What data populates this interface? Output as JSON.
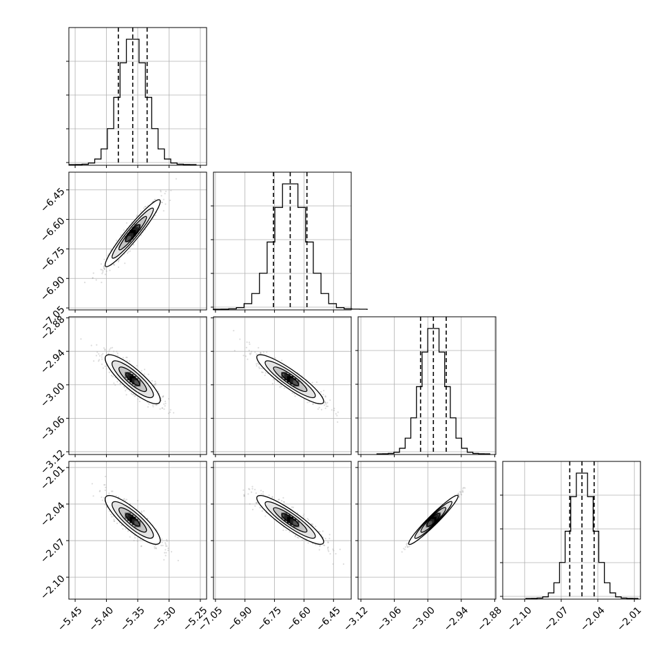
{
  "chart_data": {
    "type": "corner",
    "grid": true,
    "parameters": [
      {
        "range": [
          -5.46,
          -5.24
        ],
        "ticks": [
          -5.45,
          -5.4,
          -5.35,
          -5.3,
          -5.25
        ],
        "tick_labels": [
          "−5.45",
          "−5.40",
          "−5.35",
          "−5.30",
          "−5.25"
        ],
        "center": -5.358,
        "sd": 0.022,
        "quantiles": [
          -5.381,
          -5.358,
          -5.335
        ]
      },
      {
        "range": [
          -7.06,
          -6.36
        ],
        "ticks": [
          -7.05,
          -6.9,
          -6.75,
          -6.6,
          -6.45
        ],
        "tick_labels": [
          "−7.05",
          "−6.90",
          "−6.75",
          "−6.60",
          "−6.45"
        ],
        "center": -6.67,
        "sd": 0.085,
        "quantiles": [
          -6.755,
          -6.67,
          -6.585
        ]
      },
      {
        "range": [
          -3.125,
          -2.878
        ],
        "ticks": [
          -3.12,
          -3.06,
          -3.0,
          -2.94,
          -2.88
        ],
        "tick_labels": [
          "−3.12",
          "−3.06",
          "−3.00",
          "−2.94",
          "−2.88"
        ],
        "center": -2.99,
        "sd": 0.022,
        "quantiles": [
          -3.013,
          -2.99,
          -2.967
        ]
      },
      {
        "range": [
          -2.118,
          -2.005
        ],
        "ticks": [
          -2.1,
          -2.07,
          -2.04,
          -2.01
        ],
        "tick_labels": [
          "−2.10",
          "−2.07",
          "−2.04",
          "−2.01"
        ],
        "center": -2.053,
        "sd": 0.01,
        "quantiles": [
          -2.063,
          -2.053,
          -2.043
        ]
      }
    ],
    "correlations": [
      {
        "i": 1,
        "j": 0,
        "rho": 0.95
      },
      {
        "i": 2,
        "j": 0,
        "rho": -0.85
      },
      {
        "i": 2,
        "j": 1,
        "rho": -0.9
      },
      {
        "i": 3,
        "j": 0,
        "rho": -0.85
      },
      {
        "i": 3,
        "j": 1,
        "rho": -0.9
      },
      {
        "i": 3,
        "j": 2,
        "rho": 0.99
      }
    ],
    "contour_levels_sigma": [
      0.5,
      1.0,
      1.5,
      2.0
    ]
  }
}
